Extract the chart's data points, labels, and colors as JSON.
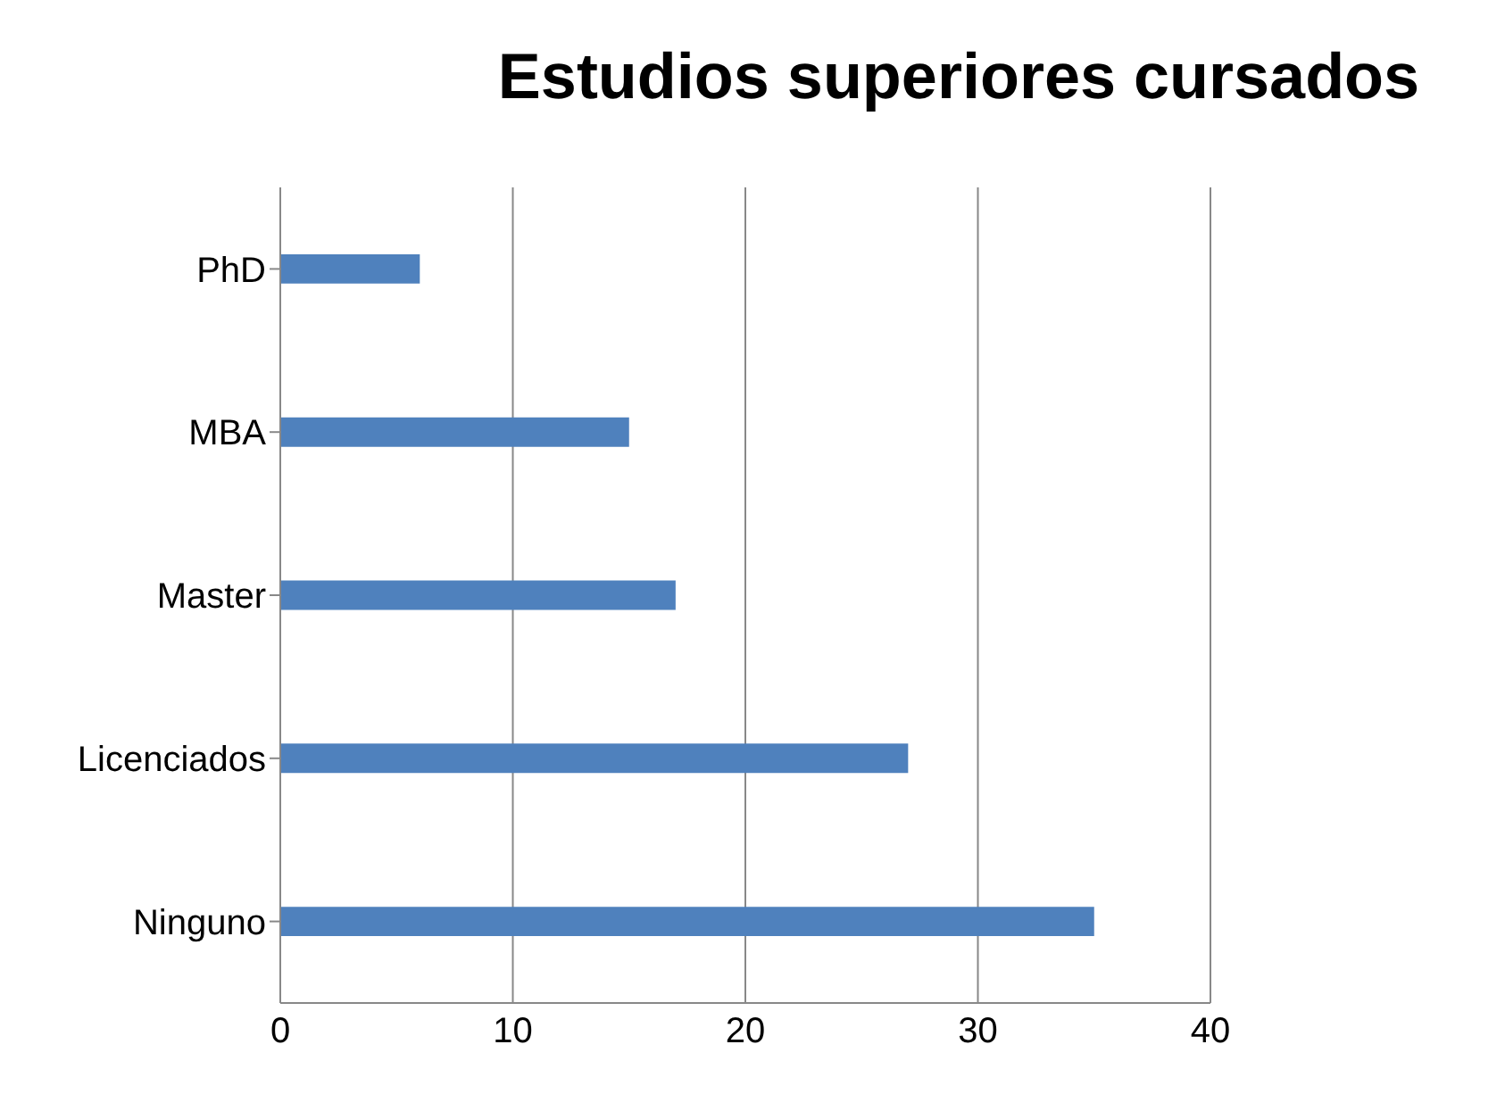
{
  "chart_data": {
    "type": "bar",
    "orientation": "horizontal",
    "title": "Estudios superiores cursados",
    "categories": [
      "PhD",
      "MBA",
      "Master",
      "Licenciados",
      "Ninguno"
    ],
    "values": [
      6,
      15,
      17,
      27,
      35
    ],
    "color": "#4f81bd",
    "xlim": [
      0,
      40
    ],
    "xticks": [
      0,
      10,
      20,
      30,
      40
    ],
    "grid": "x",
    "legend": false
  }
}
